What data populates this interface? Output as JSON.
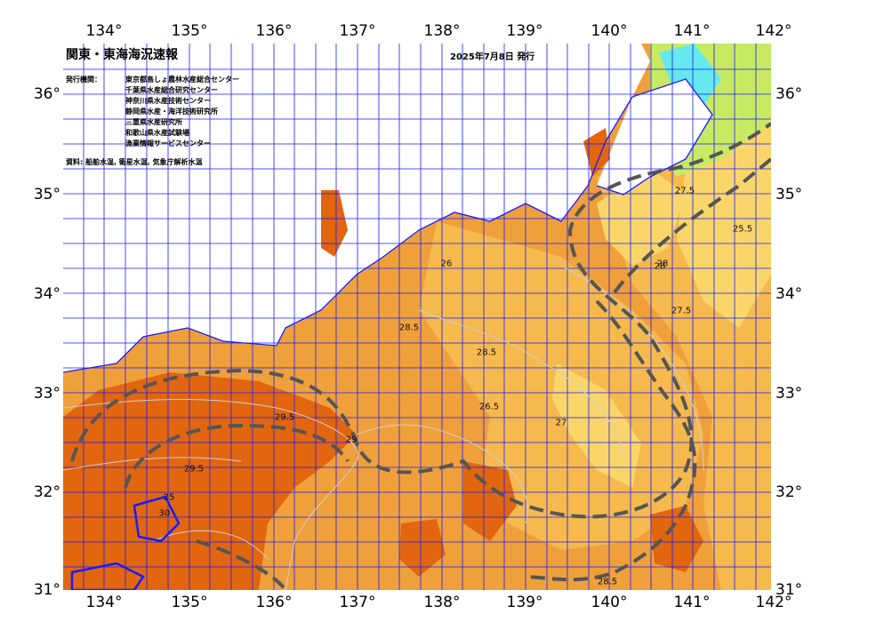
{
  "map": {
    "title": "関東・東海海況速報",
    "issue_date": "2025年7月8日 発行",
    "institutions_label": "発行機関：",
    "institutions": [
      "東京都島しょ農林水産総合センター",
      "千葉県水産総合研究センター",
      "神奈川県水産技術センター",
      "静岡県水産・海洋技術研究所",
      "三重県水産研究所",
      "和歌山県水産試験場",
      "漁業情報サービスセンター"
    ],
    "source": "資料: 船舶水温, 衛星水温, 気象庁解析水温",
    "lon_ticks": [
      "134°",
      "135°",
      "136°",
      "137°",
      "138°",
      "139°",
      "140°",
      "141°",
      "142°"
    ],
    "lat_ticks": [
      "36°",
      "35°",
      "34°",
      "33°",
      "32°",
      "31°"
    ],
    "contour_labels": [
      "25",
      "26",
      "27.5",
      "28",
      "28.5",
      "29",
      "29.5",
      "30",
      "27",
      "27.5",
      "28.5",
      "29.5",
      "28.5",
      "26.5",
      "28",
      "25.5"
    ],
    "colors": {
      "land": "#ffffff",
      "sea_warm": "#e2660f",
      "sea_mid": "#f0a03a",
      "sea_light": "#f5b94e",
      "sea_cool": "#fad66a",
      "sea_cold": "#c8ea62",
      "sea_coldest": "#66e8ee",
      "grid": "#1a1aff",
      "contour": "#c0c0c0",
      "current": "#555555"
    }
  }
}
